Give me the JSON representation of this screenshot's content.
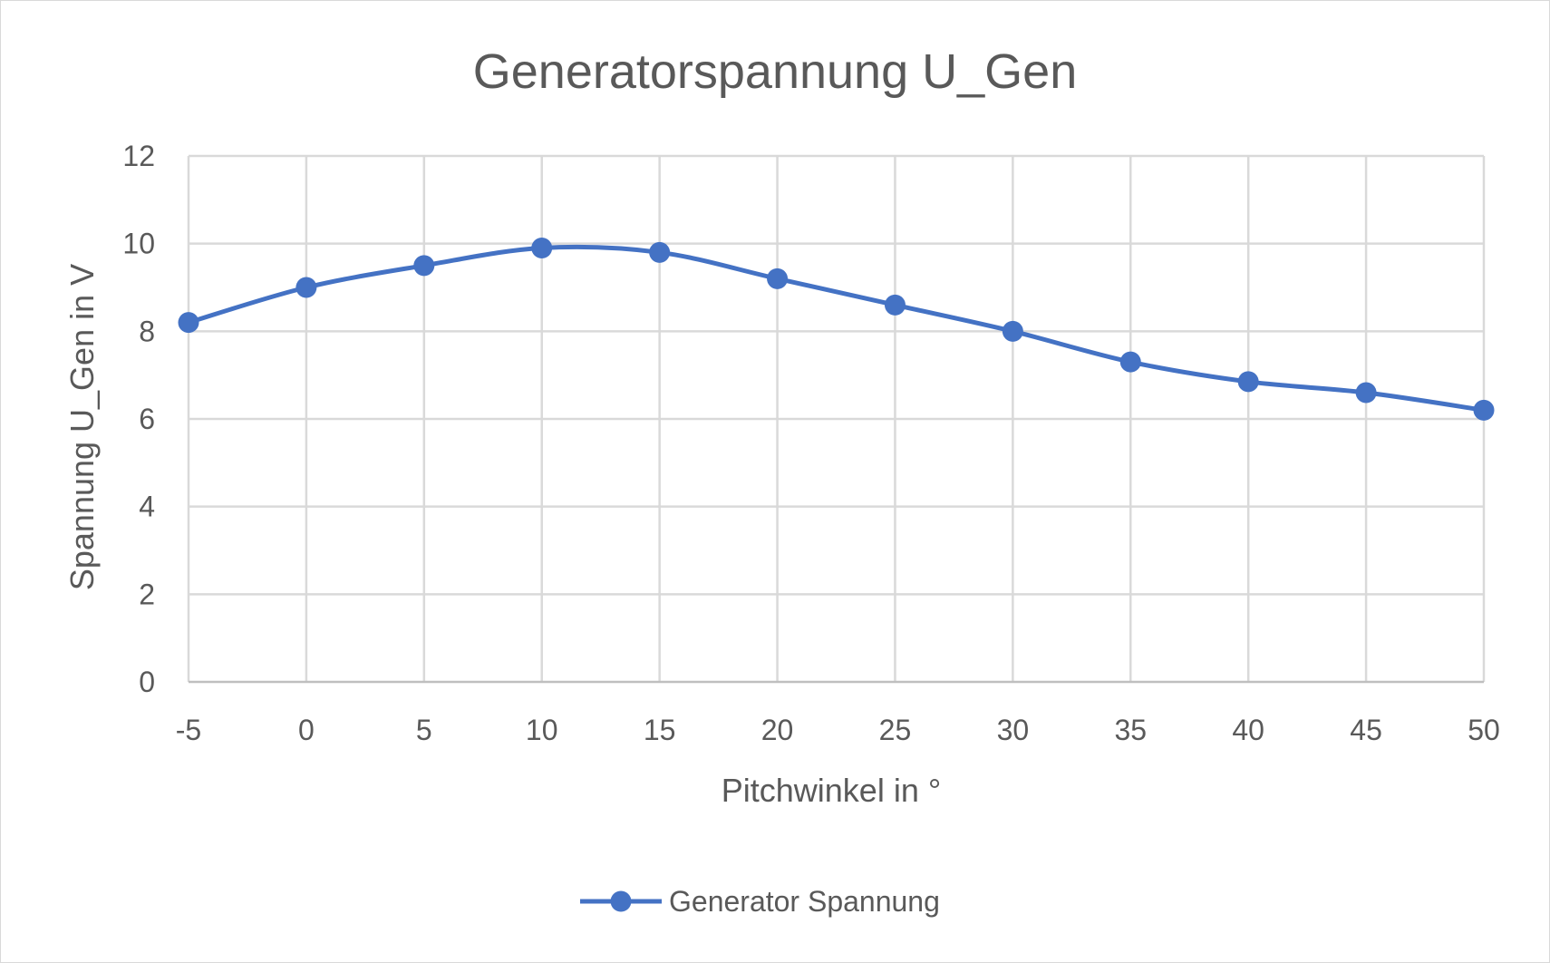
{
  "chart_data": {
    "type": "line",
    "title": "Generatorspannung U_Gen",
    "xlabel": "Pitchwinkel in °",
    "ylabel": "Spannung U_Gen in V",
    "x": [
      -5,
      0,
      5,
      10,
      15,
      20,
      25,
      30,
      35,
      40,
      45,
      50
    ],
    "xlim": [
      -5,
      50
    ],
    "ylim": [
      0,
      12
    ],
    "x_ticks": [
      "-5",
      "0",
      "5",
      "10",
      "15",
      "20",
      "25",
      "30",
      "35",
      "40",
      "45",
      "50"
    ],
    "y_ticks": [
      "0",
      "2",
      "4",
      "6",
      "8",
      "10",
      "12"
    ],
    "grid": true,
    "smooth": true,
    "legend_position": "bottom",
    "series": [
      {
        "name": "Generator Spannung",
        "color": "#4472c4",
        "marker": "circle",
        "values": [
          8.2,
          9.0,
          9.5,
          9.9,
          9.8,
          9.2,
          8.6,
          8.0,
          7.3,
          6.85,
          6.6,
          6.2
        ]
      }
    ],
    "colors": {
      "grid": "#d9d9d9",
      "text": "#595959",
      "axis": "#bfbfbf"
    }
  }
}
